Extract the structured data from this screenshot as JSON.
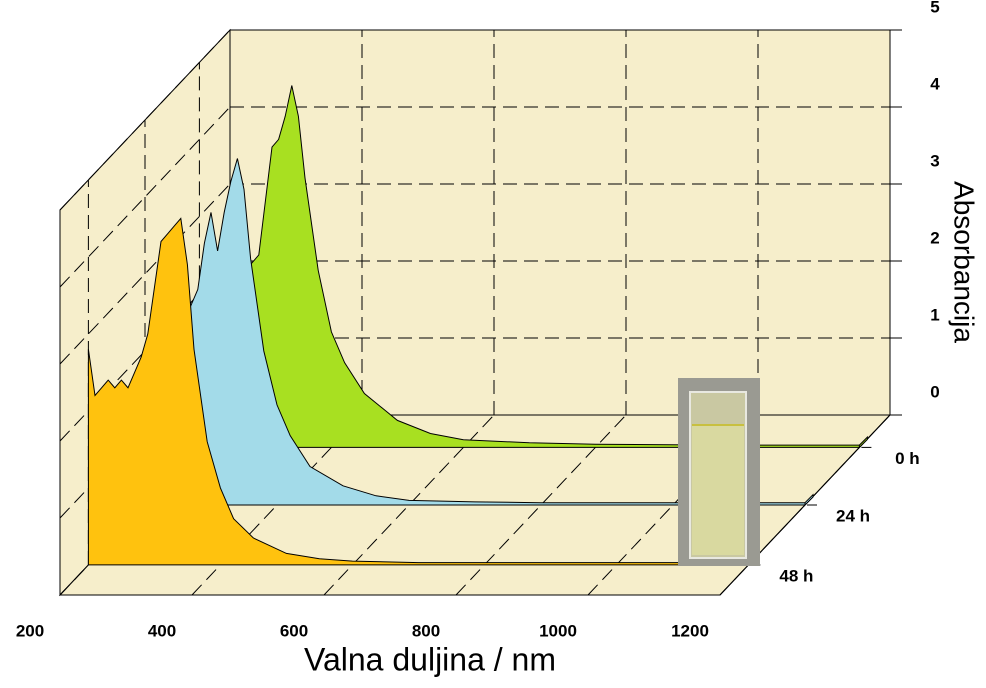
{
  "chart_data": {
    "type": "waterfall",
    "x_label": "Valna duljina / nm",
    "y_label": "Absorbancija",
    "x": [
      200,
      210,
      220,
      230,
      240,
      250,
      260,
      270,
      280,
      290,
      300,
      310,
      320,
      330,
      340,
      350,
      360,
      380,
      400,
      420,
      450,
      500,
      550,
      600,
      700,
      800,
      1000,
      1200
    ],
    "series": [
      {
        "name": "0 h",
        "color": "#a8e021",
        "values": [
          null,
          2.1,
          2.2,
          2.2,
          2.2,
          2.3,
          2.3,
          2.3,
          2.4,
          2.5,
          3.2,
          3.9,
          4.0,
          4.3,
          4.7,
          4.3,
          3.5,
          2.3,
          1.5,
          1.1,
          0.7,
          0.35,
          0.18,
          0.1,
          0.06,
          0.04,
          0.03,
          0.03
        ]
      },
      {
        "name": "24 h",
        "color": "#a3dbe9",
        "values": [
          1.0,
          1.5,
          2.0,
          2.1,
          2.0,
          2.2,
          2.4,
          2.6,
          2.8,
          3.4,
          3.8,
          3.3,
          3.8,
          4.2,
          4.5,
          4.1,
          3.2,
          2.0,
          1.3,
          0.9,
          0.5,
          0.25,
          0.12,
          0.06,
          0.04,
          0.03,
          0.03,
          0.03
        ]
      },
      {
        "name": "48 h",
        "color": "#ffc20e",
        "values": [
          2.8,
          2.2,
          2.3,
          2.4,
          2.3,
          2.4,
          2.3,
          2.5,
          2.7,
          3.0,
          3.6,
          4.2,
          4.3,
          4.4,
          4.5,
          3.9,
          2.8,
          1.6,
          1.0,
          0.6,
          0.35,
          0.15,
          0.08,
          0.05,
          0.03,
          0.03,
          0.03,
          0.03
        ]
      }
    ],
    "xlim": [
      200,
      1200
    ],
    "xticks": [
      200,
      400,
      600,
      800,
      1000,
      1200
    ],
    "ylim": [
      0,
      5
    ],
    "yticks": [
      0,
      1,
      2,
      3,
      4,
      5
    ],
    "grid": true
  }
}
